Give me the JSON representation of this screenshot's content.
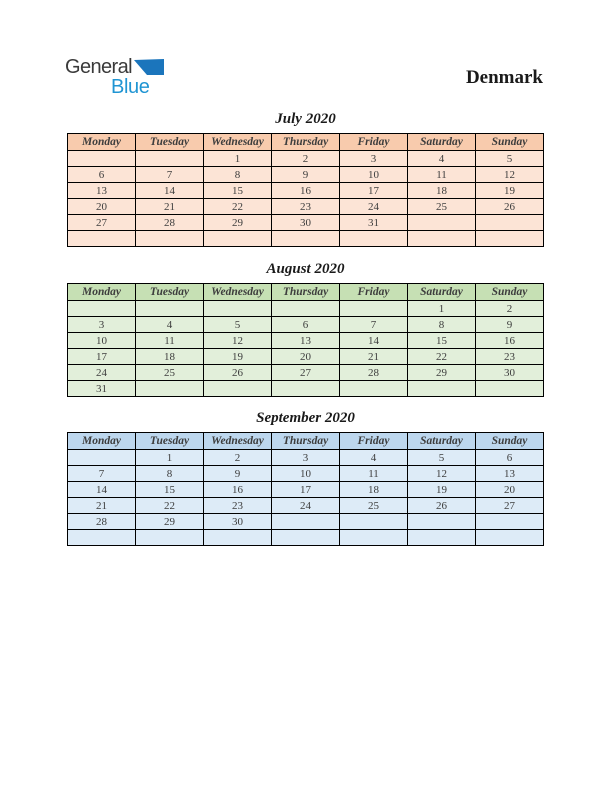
{
  "logo": {
    "line1": "General",
    "line2": "Blue"
  },
  "country_title": "Denmark",
  "weekdays": [
    "Monday",
    "Tuesday",
    "Wednesday",
    "Thursday",
    "Friday",
    "Saturday",
    "Sunday"
  ],
  "months": [
    {
      "name": "july",
      "title": "July 2020",
      "theme": {
        "header_bg": "#F8CBAD",
        "cell_bg": "#FCE4D6"
      },
      "weeks": [
        [
          "",
          "",
          "1",
          "2",
          "3",
          "4",
          "5"
        ],
        [
          "6",
          "7",
          "8",
          "9",
          "10",
          "11",
          "12"
        ],
        [
          "13",
          "14",
          "15",
          "16",
          "17",
          "18",
          "19"
        ],
        [
          "20",
          "21",
          "22",
          "23",
          "24",
          "25",
          "26"
        ],
        [
          "27",
          "28",
          "29",
          "30",
          "31",
          "",
          ""
        ],
        [
          "",
          "",
          "",
          "",
          "",
          "",
          ""
        ]
      ]
    },
    {
      "name": "august",
      "title": "August 2020",
      "theme": {
        "header_bg": "#C6E0B4",
        "cell_bg": "#E2EFDA"
      },
      "weeks": [
        [
          "",
          "",
          "",
          "",
          "",
          "1",
          "2"
        ],
        [
          "3",
          "4",
          "5",
          "6",
          "7",
          "8",
          "9"
        ],
        [
          "10",
          "11",
          "12",
          "13",
          "14",
          "15",
          "16"
        ],
        [
          "17",
          "18",
          "19",
          "20",
          "21",
          "22",
          "23"
        ],
        [
          "24",
          "25",
          "26",
          "27",
          "28",
          "29",
          "30"
        ],
        [
          "31",
          "",
          "",
          "",
          "",
          "",
          ""
        ]
      ]
    },
    {
      "name": "september",
      "title": "September 2020",
      "theme": {
        "header_bg": "#BDD7EE",
        "cell_bg": "#DDEBF7"
      },
      "weeks": [
        [
          "",
          "1",
          "2",
          "3",
          "4",
          "5",
          "6"
        ],
        [
          "7",
          "8",
          "9",
          "10",
          "11",
          "12",
          "13"
        ],
        [
          "14",
          "15",
          "16",
          "17",
          "18",
          "19",
          "20"
        ],
        [
          "21",
          "22",
          "23",
          "24",
          "25",
          "26",
          "27"
        ],
        [
          "28",
          "29",
          "30",
          "",
          "",
          "",
          ""
        ],
        [
          "",
          "",
          "",
          "",
          "",
          "",
          ""
        ]
      ]
    }
  ],
  "colors": {
    "logo_general": "#3A3A3A",
    "logo_blue": "#2095D3",
    "logo_triangle": "#1B75BC",
    "table_text": "#3D3D3D",
    "table_border": "#000000",
    "title_text": "#1A1A1A"
  }
}
